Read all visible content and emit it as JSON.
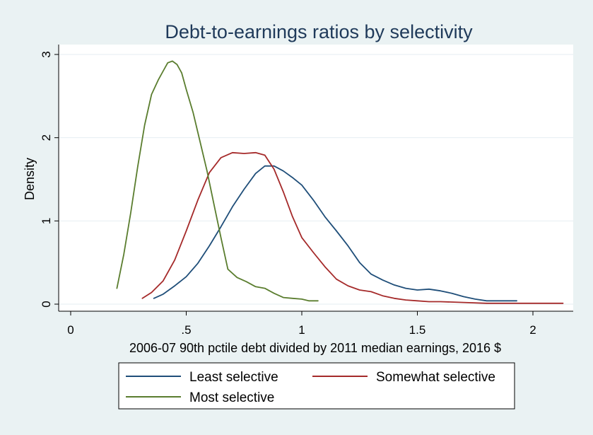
{
  "chart_data": {
    "type": "line",
    "title": "Debt-to-earnings ratios by selectivity",
    "xlabel": "2006-07 90th pctile debt divided by 2011 median earnings, 2016 $",
    "ylabel": "Density",
    "xlim": [
      0,
      2.2
    ],
    "ylim": [
      0,
      3.1
    ],
    "grid": true,
    "x_ticks": [
      0,
      0.5,
      1,
      1.5,
      2
    ],
    "x_tick_labels": [
      "0",
      ".5",
      "1",
      "1.5",
      "2"
    ],
    "y_ticks": [
      0,
      1,
      2,
      3
    ],
    "y_tick_labels": [
      "0",
      "1",
      "2",
      "3"
    ],
    "legend_position": "bottom",
    "series": [
      {
        "name": "Least selective",
        "color": "#1f4e79",
        "points": [
          [
            0.36,
            0.07
          ],
          [
            0.4,
            0.12
          ],
          [
            0.45,
            0.22
          ],
          [
            0.5,
            0.33
          ],
          [
            0.55,
            0.49
          ],
          [
            0.6,
            0.7
          ],
          [
            0.65,
            0.93
          ],
          [
            0.7,
            1.17
          ],
          [
            0.75,
            1.38
          ],
          [
            0.8,
            1.57
          ],
          [
            0.84,
            1.66
          ],
          [
            0.88,
            1.66
          ],
          [
            0.92,
            1.6
          ],
          [
            0.96,
            1.52
          ],
          [
            1.0,
            1.43
          ],
          [
            1.05,
            1.25
          ],
          [
            1.1,
            1.05
          ],
          [
            1.15,
            0.88
          ],
          [
            1.2,
            0.7
          ],
          [
            1.25,
            0.5
          ],
          [
            1.3,
            0.36
          ],
          [
            1.35,
            0.29
          ],
          [
            1.4,
            0.23
          ],
          [
            1.45,
            0.19
          ],
          [
            1.5,
            0.17
          ],
          [
            1.55,
            0.18
          ],
          [
            1.6,
            0.16
          ],
          [
            1.65,
            0.13
          ],
          [
            1.7,
            0.09
          ],
          [
            1.75,
            0.06
          ],
          [
            1.8,
            0.04
          ],
          [
            1.85,
            0.04
          ],
          [
            1.93,
            0.04
          ]
        ]
      },
      {
        "name": "Somewhat selective",
        "color": "#a52a2a",
        "points": [
          [
            0.31,
            0.07
          ],
          [
            0.35,
            0.14
          ],
          [
            0.4,
            0.28
          ],
          [
            0.45,
            0.53
          ],
          [
            0.5,
            0.88
          ],
          [
            0.55,
            1.25
          ],
          [
            0.6,
            1.58
          ],
          [
            0.65,
            1.76
          ],
          [
            0.7,
            1.82
          ],
          [
            0.75,
            1.81
          ],
          [
            0.8,
            1.82
          ],
          [
            0.84,
            1.79
          ],
          [
            0.88,
            1.62
          ],
          [
            0.92,
            1.35
          ],
          [
            0.96,
            1.05
          ],
          [
            1.0,
            0.8
          ],
          [
            1.05,
            0.62
          ],
          [
            1.1,
            0.45
          ],
          [
            1.15,
            0.3
          ],
          [
            1.2,
            0.22
          ],
          [
            1.25,
            0.17
          ],
          [
            1.3,
            0.15
          ],
          [
            1.35,
            0.1
          ],
          [
            1.4,
            0.07
          ],
          [
            1.45,
            0.05
          ],
          [
            1.5,
            0.04
          ],
          [
            1.55,
            0.03
          ],
          [
            1.6,
            0.03
          ],
          [
            1.7,
            0.02
          ],
          [
            1.8,
            0.01
          ],
          [
            1.9,
            0.01
          ],
          [
            2.0,
            0.01
          ],
          [
            2.13,
            0.01
          ]
        ]
      },
      {
        "name": "Most selective",
        "color": "#5a7d2e",
        "points": [
          [
            0.2,
            0.19
          ],
          [
            0.23,
            0.6
          ],
          [
            0.26,
            1.1
          ],
          [
            0.29,
            1.65
          ],
          [
            0.32,
            2.15
          ],
          [
            0.35,
            2.52
          ],
          [
            0.38,
            2.7
          ],
          [
            0.4,
            2.8
          ],
          [
            0.42,
            2.9
          ],
          [
            0.44,
            2.92
          ],
          [
            0.46,
            2.88
          ],
          [
            0.48,
            2.78
          ],
          [
            0.5,
            2.58
          ],
          [
            0.53,
            2.3
          ],
          [
            0.56,
            1.95
          ],
          [
            0.59,
            1.6
          ],
          [
            0.62,
            1.2
          ],
          [
            0.65,
            0.8
          ],
          [
            0.68,
            0.42
          ],
          [
            0.72,
            0.32
          ],
          [
            0.76,
            0.27
          ],
          [
            0.8,
            0.21
          ],
          [
            0.84,
            0.19
          ],
          [
            0.88,
            0.13
          ],
          [
            0.92,
            0.08
          ],
          [
            0.96,
            0.07
          ],
          [
            1.0,
            0.06
          ],
          [
            1.03,
            0.04
          ],
          [
            1.07,
            0.04
          ]
        ]
      }
    ]
  }
}
